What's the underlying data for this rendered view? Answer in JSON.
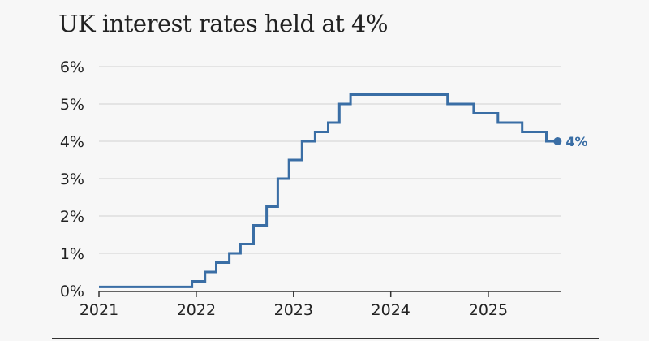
{
  "chart_data": {
    "type": "line",
    "title": "UK interest rates held at 4%",
    "xlabel": "",
    "ylabel": "",
    "x_ticks": [
      "2021",
      "2022",
      "2023",
      "2024",
      "2025"
    ],
    "y_ticks": [
      "0%",
      "1%",
      "2%",
      "3%",
      "4%",
      "5%",
      "6%"
    ],
    "xlim": [
      "2021-01-01",
      "2025-09-20"
    ],
    "ylim": [
      0,
      6
    ],
    "grid": true,
    "step": true,
    "line_color": "#3a6ea5",
    "end_label": "4%",
    "series": [
      {
        "points": [
          {
            "date": "2021-01-01",
            "rate": 0.1
          },
          {
            "date": "2021-12-16",
            "rate": 0.25
          },
          {
            "date": "2022-02-03",
            "rate": 0.5
          },
          {
            "date": "2022-03-17",
            "rate": 0.75
          },
          {
            "date": "2022-05-05",
            "rate": 1.0
          },
          {
            "date": "2022-06-16",
            "rate": 1.25
          },
          {
            "date": "2022-08-04",
            "rate": 1.75
          },
          {
            "date": "2022-09-22",
            "rate": 2.25
          },
          {
            "date": "2022-11-03",
            "rate": 3.0
          },
          {
            "date": "2022-12-15",
            "rate": 3.5
          },
          {
            "date": "2023-02-02",
            "rate": 4.0
          },
          {
            "date": "2023-03-23",
            "rate": 4.25
          },
          {
            "date": "2023-05-11",
            "rate": 4.5
          },
          {
            "date": "2023-06-22",
            "rate": 5.0
          },
          {
            "date": "2023-08-03",
            "rate": 5.25
          },
          {
            "date": "2024-08-01",
            "rate": 5.0
          },
          {
            "date": "2024-11-07",
            "rate": 4.75
          },
          {
            "date": "2025-02-06",
            "rate": 4.5
          },
          {
            "date": "2025-05-08",
            "rate": 4.25
          },
          {
            "date": "2025-08-07",
            "rate": 4.0
          },
          {
            "date": "2025-09-18",
            "rate": 4.0
          }
        ]
      }
    ]
  }
}
